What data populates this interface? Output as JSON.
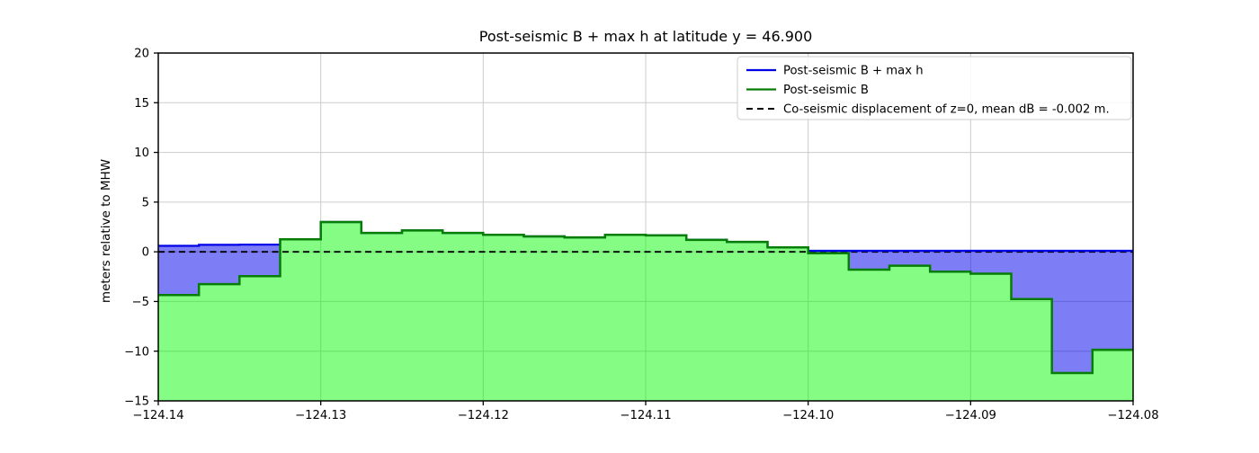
{
  "chart_data": {
    "type": "area",
    "title": "Post-seismic B + max h at latitude y = 46.900",
    "xlabel": "",
    "ylabel": "meters relative to MHW",
    "xlim": [
      -124.14,
      -124.08
    ],
    "ylim": [
      -15,
      20
    ],
    "grid": true,
    "xtick_values": [
      -124.14,
      -124.13,
      -124.12,
      -124.11,
      -124.1,
      -124.09,
      -124.08
    ],
    "xtick_labels": [
      "−124.14",
      "−124.13",
      "−124.12",
      "−124.11",
      "−124.10",
      "−124.09",
      "−124.08"
    ],
    "ytick_values": [
      -15,
      -10,
      -5,
      0,
      5,
      10,
      15,
      20
    ],
    "ytick_labels": [
      "−15",
      "−10",
      "−5",
      "0",
      "5",
      "10",
      "15",
      "20"
    ],
    "x_step_edges": [
      -124.14,
      -124.1375,
      -124.135,
      -124.1325,
      -124.13,
      -124.1275,
      -124.125,
      -124.1225,
      -124.12,
      -124.1175,
      -124.115,
      -124.1125,
      -124.11,
      -124.1075,
      -124.105,
      -124.1025,
      -124.1,
      -124.0975,
      -124.095,
      -124.0925,
      -124.09,
      -124.0875,
      -124.085,
      -124.0825,
      -124.08
    ],
    "series": [
      {
        "name": "Post-seismic B + max h",
        "style": "step-line",
        "color": "#0202e8",
        "values": [
          0.6,
          0.7,
          0.72,
          1.25,
          3.0,
          1.9,
          2.15,
          1.9,
          1.7,
          1.55,
          1.45,
          1.7,
          1.65,
          1.2,
          1.0,
          0.45,
          0.1,
          0.1,
          0.1,
          0.1,
          0.1,
          0.1,
          0.1,
          0.1
        ]
      },
      {
        "name": "Post-seismic B",
        "style": "step-line-filled",
        "color": "#067d06",
        "fill_color": "rgba(0,250,0,0.48)",
        "fill_to": -15,
        "values": [
          -4.35,
          -3.25,
          -2.45,
          1.25,
          3.0,
          1.9,
          2.15,
          1.9,
          1.7,
          1.55,
          1.45,
          1.7,
          1.65,
          1.2,
          1.0,
          0.45,
          -0.15,
          -1.8,
          -1.4,
          -2.0,
          -2.2,
          -4.75,
          -12.2,
          -9.85
        ]
      },
      {
        "name": "Co-seismic displacement of z=0, mean dB = -0.002 m.",
        "style": "dashed-hline",
        "color": "#000000",
        "y": -0.002
      }
    ],
    "between_fill_color": "rgba(0,0,235,0.51)",
    "legend": {
      "position": "upper right",
      "entries": [
        {
          "label": "Post-seismic B + max h",
          "color": "#0202e8",
          "dash": false
        },
        {
          "label": "Post-seismic B",
          "color": "#067d06",
          "dash": false
        },
        {
          "label": "Co-seismic displacement of z=0, mean dB = -0.002 m.",
          "color": "#000000",
          "dash": true
        }
      ]
    },
    "grid_color": "#cccccc",
    "spine_color": "#000000"
  }
}
